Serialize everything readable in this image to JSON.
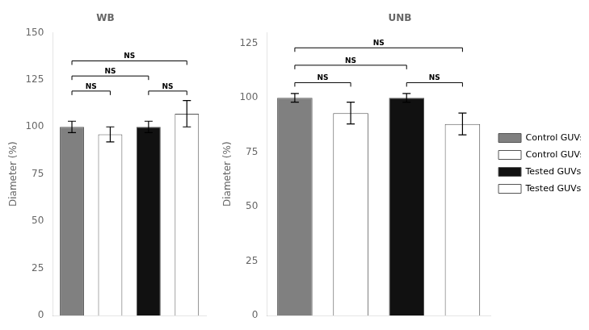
{
  "chart_data": [
    {
      "type": "bar",
      "title": "WB",
      "categories": [
        "Control GUVs (prior exposure)",
        "Control GUVs (sham exposure)",
        "Tested GUVs (prior exposure)",
        "Tested GUVs (after exposure)"
      ],
      "values": [
        100,
        96,
        100,
        107
      ],
      "errors": [
        3,
        4,
        3,
        7
      ],
      "colors": [
        "#808080",
        "#ffffff",
        "#111111",
        "#ffffff"
      ],
      "ylabel": "Diameter (%)",
      "ylim": [
        0,
        150
      ],
      "yticks": [
        0,
        25,
        50,
        75,
        100,
        125,
        150
      ],
      "grid": false,
      "tick_labels": "y",
      "annotations": [
        {
          "text": "NS",
          "x1": "Control GUVs (prior exposure)",
          "x2": "Control GUVs (sham exposure)",
          "y": 119
        },
        {
          "text": "NS",
          "x1": "Tested GUVs (prior exposure)",
          "x2": "Tested GUVs (after exposure)",
          "y": 119
        },
        {
          "text": "NS",
          "x1": "Control GUVs (prior exposure)",
          "x2": "Tested GUVs (prior exposure)",
          "y": 127
        },
        {
          "text": "NS",
          "x1": "Control GUVs (prior exposure)",
          "x2": "Tested GUVs (after exposure)",
          "y": 135
        }
      ]
    },
    {
      "type": "bar",
      "title": "UNB",
      "categories": [
        "Control GUVs (prior exposure)",
        "Control GUVs (sham exposure)",
        "Tested GUVs (prior exposure)",
        "Tested GUVs (after exposure)"
      ],
      "values": [
        100,
        93,
        100,
        88
      ],
      "errors": [
        2,
        5,
        2,
        5
      ],
      "colors": [
        "#808080",
        "#ffffff",
        "#111111",
        "#ffffff"
      ],
      "ylabel": "Diameter (%)",
      "ylim": [
        0,
        130
      ],
      "yticks": [
        0,
        25,
        50,
        75,
        100,
        125
      ],
      "grid": false,
      "tick_labels": "y",
      "legend": "right",
      "annotations": [
        {
          "text": "NS",
          "x1": "Control GUVs (prior exposure)",
          "x2": "Control GUVs (sham exposure)",
          "y": 107
        },
        {
          "text": "NS",
          "x1": "Tested GUVs (prior exposure)",
          "x2": "Tested GUVs (after exposure)",
          "y": 107
        },
        {
          "text": "NS",
          "x1": "Control GUVs (prior exposure)",
          "x2": "Tested GUVs (prior exposure)",
          "y": 115
        },
        {
          "text": "NS",
          "x1": "Control GUVs (prior exposure)",
          "x2": "Tested GUVs (after exposure)",
          "y": 123
        }
      ]
    }
  ]
}
